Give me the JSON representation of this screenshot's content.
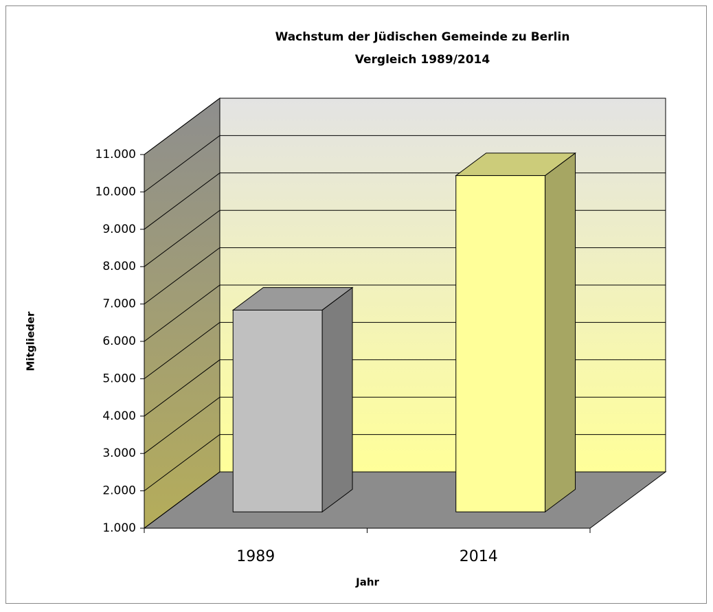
{
  "chart_data": {
    "type": "bar3d",
    "title": "Wachstum der Jüdischen Gemeinde zu Berlin",
    "subtitle": "Vergleich 1989/2014",
    "y_label": "Mitglieder",
    "x_label": "Jahr",
    "categories": [
      "1989",
      "2014"
    ],
    "values": [
      6400,
      10000
    ],
    "colors": [
      "#c0c0c0",
      "#ffff99"
    ],
    "ylim": [
      1000,
      11000
    ],
    "yticks": [
      {
        "value": 1000,
        "label": "1.000"
      },
      {
        "value": 2000,
        "label": "2.000"
      },
      {
        "value": 3000,
        "label": "3.000"
      },
      {
        "value": 4000,
        "label": "4.000"
      },
      {
        "value": 5000,
        "label": "5.000"
      },
      {
        "value": 6000,
        "label": "6.000"
      },
      {
        "value": 7000,
        "label": "7.000"
      },
      {
        "value": 8000,
        "label": "8.000"
      },
      {
        "value": 9000,
        "label": "9.000"
      },
      {
        "value": 10000,
        "label": "10.000"
      },
      {
        "value": 11000,
        "label": "11.000"
      }
    ],
    "grid": true
  }
}
